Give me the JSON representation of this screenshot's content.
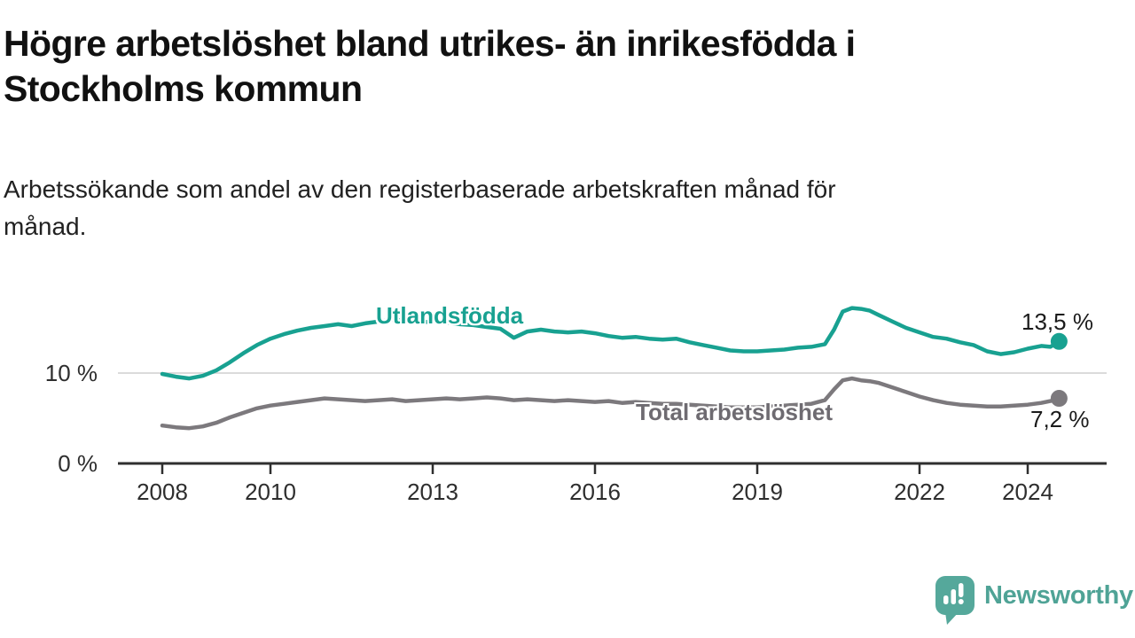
{
  "header": {
    "title_lines": [
      "Högre arbetslöshet bland utrikes- än inrikesfödda i",
      "Stockholms kommun"
    ],
    "subtitle_lines": [
      "Arbetssökande som andel av den registerbaserade arbetskraften månad för",
      "månad."
    ]
  },
  "footer": {
    "brand": "Newsworthy"
  },
  "colors": {
    "teal": "#18a191",
    "gray": "#7c797d",
    "label_gray": "#6e6b71",
    "axis": "#2f2f2f",
    "grid": "#dbdbdb",
    "logo_teal": "#55a89b",
    "logo_text": "#4fa396",
    "value_text": "#1b1b1b"
  },
  "chart_data": {
    "type": "line",
    "title": "Högre arbetslöshet bland utrikes- än inrikesfödda i Stockholms kommun",
    "subtitle": "Arbetssökande som andel av den registerbaserade arbetskraften månad för månad.",
    "unit": "%",
    "x_range": [
      2007.2,
      2025.45
    ],
    "y_range": [
      0,
      19.6
    ],
    "grid": "horizontal line at 10% only",
    "legend": "inline labels on lines",
    "x_ticks": [
      {
        "year": 2008,
        "label": "2008"
      },
      {
        "year": 2010,
        "label": "2010"
      },
      {
        "year": 2013,
        "label": "2013"
      },
      {
        "year": 2016,
        "label": "2016"
      },
      {
        "year": 2019,
        "label": "2019"
      },
      {
        "year": 2022,
        "label": "2022"
      },
      {
        "year": 2024,
        "label": "2024"
      }
    ],
    "y_ticks": [
      {
        "value": 0,
        "label": "0 %"
      },
      {
        "value": 10,
        "label": "10 %"
      }
    ],
    "series": [
      {
        "key": "utlandsfodda",
        "name": "Utlandsfödda",
        "color_key": "teal",
        "end_label": "13,5 %",
        "end_value": 13.5,
        "points": [
          [
            2008.0,
            9.9
          ],
          [
            2008.25,
            9.6
          ],
          [
            2008.5,
            9.4
          ],
          [
            2008.75,
            9.7
          ],
          [
            2009.0,
            10.3
          ],
          [
            2009.25,
            11.2
          ],
          [
            2009.5,
            12.2
          ],
          [
            2009.75,
            13.1
          ],
          [
            2010.0,
            13.8
          ],
          [
            2010.25,
            14.3
          ],
          [
            2010.5,
            14.7
          ],
          [
            2010.75,
            15.0
          ],
          [
            2011.0,
            15.2
          ],
          [
            2011.25,
            15.4
          ],
          [
            2011.5,
            15.2
          ],
          [
            2011.75,
            15.5
          ],
          [
            2012.0,
            15.7
          ],
          [
            2012.25,
            15.9
          ],
          [
            2012.5,
            15.8
          ],
          [
            2012.75,
            15.6
          ],
          [
            2013.0,
            15.7
          ],
          [
            2013.25,
            15.6
          ],
          [
            2013.5,
            15.4
          ],
          [
            2013.75,
            15.3
          ],
          [
            2014.0,
            15.1
          ],
          [
            2014.25,
            14.9
          ],
          [
            2014.5,
            13.9
          ],
          [
            2014.75,
            14.6
          ],
          [
            2015.0,
            14.8
          ],
          [
            2015.25,
            14.6
          ],
          [
            2015.5,
            14.5
          ],
          [
            2015.75,
            14.6
          ],
          [
            2016.0,
            14.4
          ],
          [
            2016.25,
            14.1
          ],
          [
            2016.5,
            13.9
          ],
          [
            2016.75,
            14.0
          ],
          [
            2017.0,
            13.8
          ],
          [
            2017.25,
            13.7
          ],
          [
            2017.5,
            13.8
          ],
          [
            2017.75,
            13.4
          ],
          [
            2018.0,
            13.1
          ],
          [
            2018.25,
            12.8
          ],
          [
            2018.5,
            12.5
          ],
          [
            2018.75,
            12.4
          ],
          [
            2019.0,
            12.4
          ],
          [
            2019.25,
            12.5
          ],
          [
            2019.5,
            12.6
          ],
          [
            2019.75,
            12.8
          ],
          [
            2020.0,
            12.9
          ],
          [
            2020.25,
            13.2
          ],
          [
            2020.42,
            14.8
          ],
          [
            2020.58,
            16.8
          ],
          [
            2020.75,
            17.2
          ],
          [
            2020.92,
            17.1
          ],
          [
            2021.08,
            16.9
          ],
          [
            2021.25,
            16.4
          ],
          [
            2021.5,
            15.7
          ],
          [
            2021.75,
            15.0
          ],
          [
            2022.0,
            14.5
          ],
          [
            2022.25,
            14.0
          ],
          [
            2022.5,
            13.8
          ],
          [
            2022.75,
            13.4
          ],
          [
            2023.0,
            13.1
          ],
          [
            2023.25,
            12.4
          ],
          [
            2023.5,
            12.1
          ],
          [
            2023.75,
            12.3
          ],
          [
            2024.0,
            12.7
          ],
          [
            2024.25,
            13.0
          ],
          [
            2024.42,
            12.9
          ],
          [
            2024.58,
            13.5
          ]
        ]
      },
      {
        "key": "total",
        "name": "Total arbetslöshet",
        "color_key": "gray",
        "end_label": "7,2 %",
        "end_value": 7.2,
        "points": [
          [
            2008.0,
            4.2
          ],
          [
            2008.25,
            4.0
          ],
          [
            2008.5,
            3.9
          ],
          [
            2008.75,
            4.1
          ],
          [
            2009.0,
            4.5
          ],
          [
            2009.25,
            5.1
          ],
          [
            2009.5,
            5.6
          ],
          [
            2009.75,
            6.1
          ],
          [
            2010.0,
            6.4
          ],
          [
            2010.25,
            6.6
          ],
          [
            2010.5,
            6.8
          ],
          [
            2010.75,
            7.0
          ],
          [
            2011.0,
            7.2
          ],
          [
            2011.25,
            7.1
          ],
          [
            2011.5,
            7.0
          ],
          [
            2011.75,
            6.9
          ],
          [
            2012.0,
            7.0
          ],
          [
            2012.25,
            7.1
          ],
          [
            2012.5,
            6.9
          ],
          [
            2012.75,
            7.0
          ],
          [
            2013.0,
            7.1
          ],
          [
            2013.25,
            7.2
          ],
          [
            2013.5,
            7.1
          ],
          [
            2013.75,
            7.2
          ],
          [
            2014.0,
            7.3
          ],
          [
            2014.25,
            7.2
          ],
          [
            2014.5,
            7.0
          ],
          [
            2014.75,
            7.1
          ],
          [
            2015.0,
            7.0
          ],
          [
            2015.25,
            6.9
          ],
          [
            2015.5,
            7.0
          ],
          [
            2015.75,
            6.9
          ],
          [
            2016.0,
            6.8
          ],
          [
            2016.25,
            6.9
          ],
          [
            2016.5,
            6.7
          ],
          [
            2016.75,
            6.8
          ],
          [
            2017.0,
            6.7
          ],
          [
            2017.25,
            6.6
          ],
          [
            2017.5,
            6.6
          ],
          [
            2017.75,
            6.5
          ],
          [
            2018.0,
            6.4
          ],
          [
            2018.25,
            6.3
          ],
          [
            2018.5,
            6.2
          ],
          [
            2018.75,
            6.2
          ],
          [
            2019.0,
            6.2
          ],
          [
            2019.25,
            6.3
          ],
          [
            2019.5,
            6.4
          ],
          [
            2019.75,
            6.5
          ],
          [
            2020.0,
            6.6
          ],
          [
            2020.25,
            7.0
          ],
          [
            2020.42,
            8.2
          ],
          [
            2020.58,
            9.2
          ],
          [
            2020.75,
            9.4
          ],
          [
            2020.92,
            9.2
          ],
          [
            2021.08,
            9.1
          ],
          [
            2021.25,
            8.9
          ],
          [
            2021.5,
            8.4
          ],
          [
            2021.75,
            7.9
          ],
          [
            2022.0,
            7.4
          ],
          [
            2022.25,
            7.0
          ],
          [
            2022.5,
            6.7
          ],
          [
            2022.75,
            6.5
          ],
          [
            2023.0,
            6.4
          ],
          [
            2023.25,
            6.3
          ],
          [
            2023.5,
            6.3
          ],
          [
            2023.75,
            6.4
          ],
          [
            2024.0,
            6.5
          ],
          [
            2024.25,
            6.7
          ],
          [
            2024.42,
            6.9
          ],
          [
            2024.58,
            7.2
          ]
        ]
      }
    ]
  }
}
